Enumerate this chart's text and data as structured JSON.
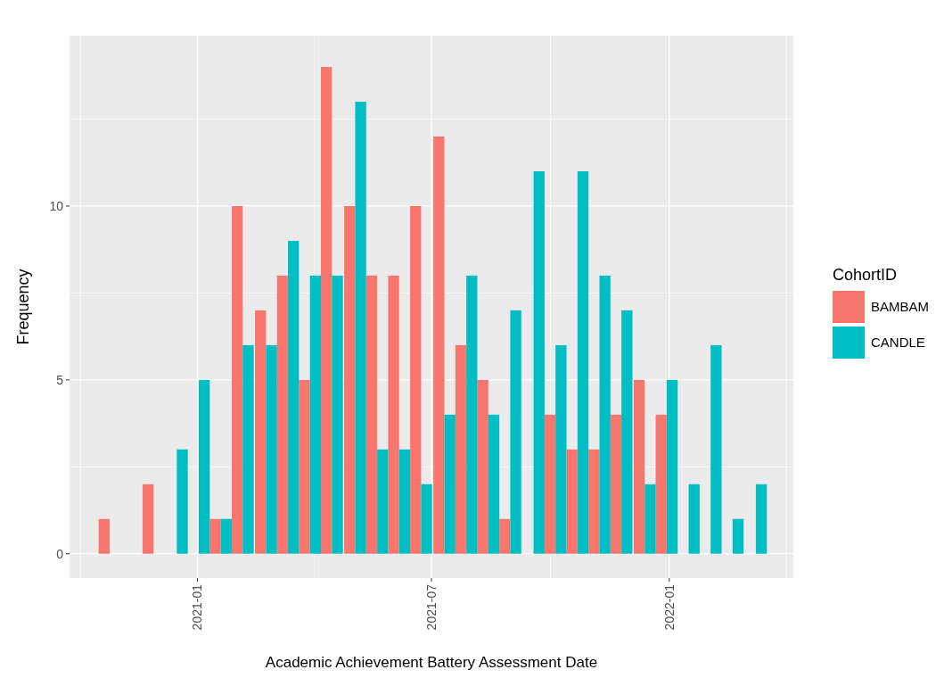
{
  "chart_data": {
    "type": "bar",
    "xlabel": "Academic Achievement Battery Assessment Date",
    "ylabel": "Frequency",
    "legend_title": "CohortID",
    "legend": "right",
    "x": [
      "2020-10-25",
      "2020-11-11",
      "2020-11-28",
      "2020-12-16",
      "2021-01-02",
      "2021-01-19",
      "2021-02-05",
      "2021-02-23",
      "2021-03-12",
      "2021-03-29",
      "2021-04-15",
      "2021-05-03",
      "2021-05-20",
      "2021-06-06",
      "2021-06-23",
      "2021-07-11",
      "2021-07-28",
      "2021-08-14",
      "2021-08-31",
      "2021-09-18",
      "2021-10-05",
      "2021-10-22",
      "2021-11-08",
      "2021-11-25",
      "2021-12-13",
      "2021-12-30",
      "2022-01-16",
      "2022-02-02",
      "2022-02-19",
      "2022-03-09"
    ],
    "series": [
      {
        "name": "BAMBAM",
        "color": "#f8766d",
        "values": [
          1,
          0,
          2,
          0,
          0,
          1,
          10,
          7,
          8,
          5,
          14,
          10,
          8,
          8,
          10,
          12,
          6,
          5,
          1,
          0,
          4,
          3,
          3,
          4,
          5,
          4,
          0,
          0,
          0,
          0
        ]
      },
      {
        "name": "CANDLE",
        "color": "#00bfc4",
        "values": [
          0,
          0,
          0,
          3,
          5,
          1,
          6,
          6,
          9,
          8,
          8,
          13,
          3,
          3,
          2,
          4,
          8,
          4,
          7,
          11,
          6,
          11,
          8,
          7,
          2,
          5,
          2,
          6,
          1,
          2
        ]
      }
    ],
    "xlim": [
      "2020-09-24",
      "2022-04-07"
    ],
    "xticks": [
      {
        "value": "2021-01",
        "label": "2021-01"
      },
      {
        "value": "2021-07",
        "label": "2021-07"
      },
      {
        "value": "2022-01",
        "label": "2022-01"
      }
    ],
    "ylim": [
      -0.7,
      14.9
    ],
    "yticks": [
      0,
      5,
      10
    ],
    "grid": true
  }
}
